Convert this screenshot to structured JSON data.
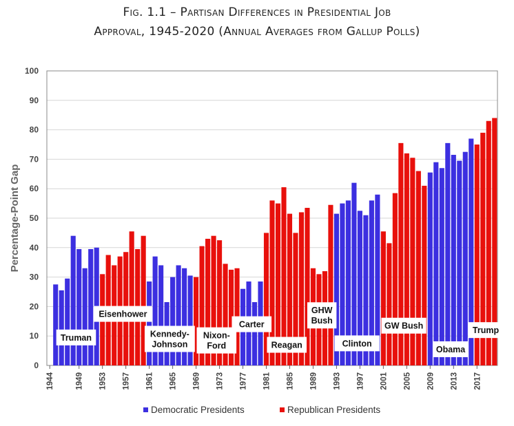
{
  "title_line1": "Fig. 1.1 – Partisan Differences in Presidential Job",
  "title_line2": "Approval, 1945-2020 (Annual Averages from Gallup Polls)",
  "colors": {
    "democratic": "#3c2fe0",
    "republican": "#e8100c"
  },
  "chart_data": {
    "type": "bar",
    "title": "Fig. 1.1 – Partisan Differences in Presidential Job Approval, 1945-2020 (Annual Averages from Gallup Polls)",
    "ylabel": "Percentage-Point Gap",
    "xlabel": "",
    "ylim": [
      0,
      100
    ],
    "yticks": [
      0,
      10,
      20,
      30,
      40,
      50,
      60,
      70,
      80,
      90,
      100
    ],
    "xticks": [
      "1944",
      "1949",
      "1953",
      "1957",
      "1961",
      "1965",
      "1969",
      "1973",
      "1977",
      "1981",
      "1985",
      "1989",
      "1993",
      "1997",
      "2001",
      "2005",
      "2009",
      "2013",
      "2017"
    ],
    "grid": true,
    "legend": {
      "placement": "bottom",
      "entries": [
        {
          "label": "Democratic Presidents",
          "party": "democratic"
        },
        {
          "label": "Republican Presidents",
          "party": "republican"
        }
      ]
    },
    "series": [
      {
        "name": "Democratic Presidents",
        "party": "democratic",
        "years": [
          1945,
          1946,
          1947,
          1948,
          1949,
          1950,
          1951,
          1952,
          1961,
          1962,
          1963,
          1964,
          1965,
          1966,
          1967,
          1968,
          1977,
          1978,
          1979,
          1980,
          1993,
          1994,
          1995,
          1996,
          1997,
          1998,
          1999,
          2000,
          2009,
          2010,
          2011,
          2012,
          2013,
          2014,
          2015,
          2016
        ],
        "values": [
          27.5,
          25.5,
          29.5,
          44,
          39.5,
          33,
          39.5,
          40,
          28.5,
          37,
          34,
          21.5,
          30,
          34,
          33,
          30.5,
          26,
          28.5,
          21.5,
          28.5,
          51.5,
          55,
          56,
          62,
          52.5,
          51,
          56,
          58,
          65.5,
          69,
          67,
          75.5,
          71.5,
          69.5,
          72.5,
          77
        ]
      },
      {
        "name": "Republican Presidents",
        "party": "republican",
        "years": [
          1953,
          1954,
          1955,
          1956,
          1957,
          1958,
          1959,
          1960,
          1969,
          1970,
          1971,
          1972,
          1973,
          1974,
          1975,
          1976,
          1981,
          1982,
          1983,
          1984,
          1985,
          1986,
          1987,
          1988,
          1989,
          1990,
          1991,
          1992,
          2001,
          2002,
          2003,
          2004,
          2005,
          2006,
          2007,
          2008,
          2017,
          2018,
          2019,
          2020
        ],
        "values": [
          31,
          37.5,
          34,
          37,
          38.5,
          45.5,
          39.5,
          44,
          30,
          40.5,
          43,
          44,
          42.5,
          34.5,
          32.5,
          33,
          45,
          56,
          55,
          60.5,
          51.5,
          45,
          52,
          53.5,
          33,
          31,
          32,
          54.5,
          45.5,
          41.5,
          58.5,
          75.5,
          72,
          70.5,
          66,
          61,
          75,
          79,
          83,
          84
        ]
      }
    ],
    "president_labels": [
      {
        "text": "Truman",
        "start": 1945,
        "end": 1952,
        "y": 9.5,
        "party": "democratic"
      },
      {
        "text": "Eisenhower",
        "start": 1953,
        "end": 1960,
        "y": 17.5,
        "party": "republican"
      },
      {
        "text": "Kennedy-\nJohnson",
        "start": 1961,
        "end": 1968,
        "y": 9,
        "party": "democratic"
      },
      {
        "text": "Nixon-\nFord",
        "start": 1969,
        "end": 1976,
        "y": 8.5,
        "party": "republican"
      },
      {
        "text": "Carter",
        "start": 1977,
        "end": 1980,
        "y": 14,
        "party": "democratic"
      },
      {
        "text": "Reagan",
        "start": 1981,
        "end": 1988,
        "y": 7,
        "party": "republican"
      },
      {
        "text": "GHW\nBush",
        "start": 1989,
        "end": 1992,
        "y": 17,
        "party": "republican"
      },
      {
        "text": "Clinton",
        "start": 1993,
        "end": 2000,
        "y": 7.5,
        "party": "democratic"
      },
      {
        "text": "GW Bush",
        "start": 2001,
        "end": 2008,
        "y": 13.5,
        "party": "republican"
      },
      {
        "text": "Obama",
        "start": 2009,
        "end": 2016,
        "y": 5.5,
        "party": "democratic"
      },
      {
        "text": "Trump",
        "start": 2017,
        "end": 2020,
        "y": 12,
        "party": "republican"
      }
    ]
  }
}
